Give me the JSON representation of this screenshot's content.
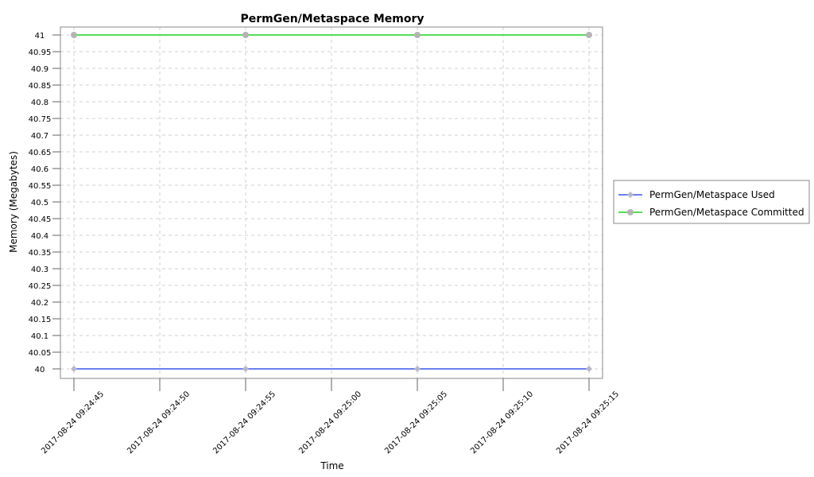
{
  "chart_data": {
    "type": "line",
    "title": "PermGen/Metaspace Memory",
    "xlabel": "Time",
    "ylabel": "Memory (Megabytes)",
    "ylim": [
      40,
      41
    ],
    "yticks": [
      "40",
      "40.05",
      "40.1",
      "40.15",
      "40.2",
      "40.25",
      "40.3",
      "40.35",
      "40.4",
      "40.45",
      "40.5",
      "40.55",
      "40.6",
      "40.65",
      "40.7",
      "40.75",
      "40.8",
      "40.85",
      "40.9",
      "40.95",
      "41"
    ],
    "xticks": [
      "2017-08-24 09:24:45",
      "2017-08-24 09:24:50",
      "2017-08-24 09:24:55",
      "2017-08-24 09:25:00",
      "2017-08-24 09:25:05",
      "2017-08-24 09:25:10",
      "2017-08-24 09:25:15"
    ],
    "x": [
      "2017-08-24 09:24:45",
      "2017-08-24 09:24:55",
      "2017-08-24 09:25:05",
      "2017-08-24 09:25:15"
    ],
    "series": [
      {
        "name": "PermGen/Metaspace Used",
        "color": "#6a7ff0",
        "marker": "diamond",
        "values": [
          40,
          40,
          40,
          40
        ]
      },
      {
        "name": "PermGen/Metaspace Committed",
        "color": "#55dd55",
        "marker": "circle",
        "values": [
          41,
          41,
          41,
          41
        ]
      }
    ],
    "grid": true,
    "legend": "right"
  }
}
